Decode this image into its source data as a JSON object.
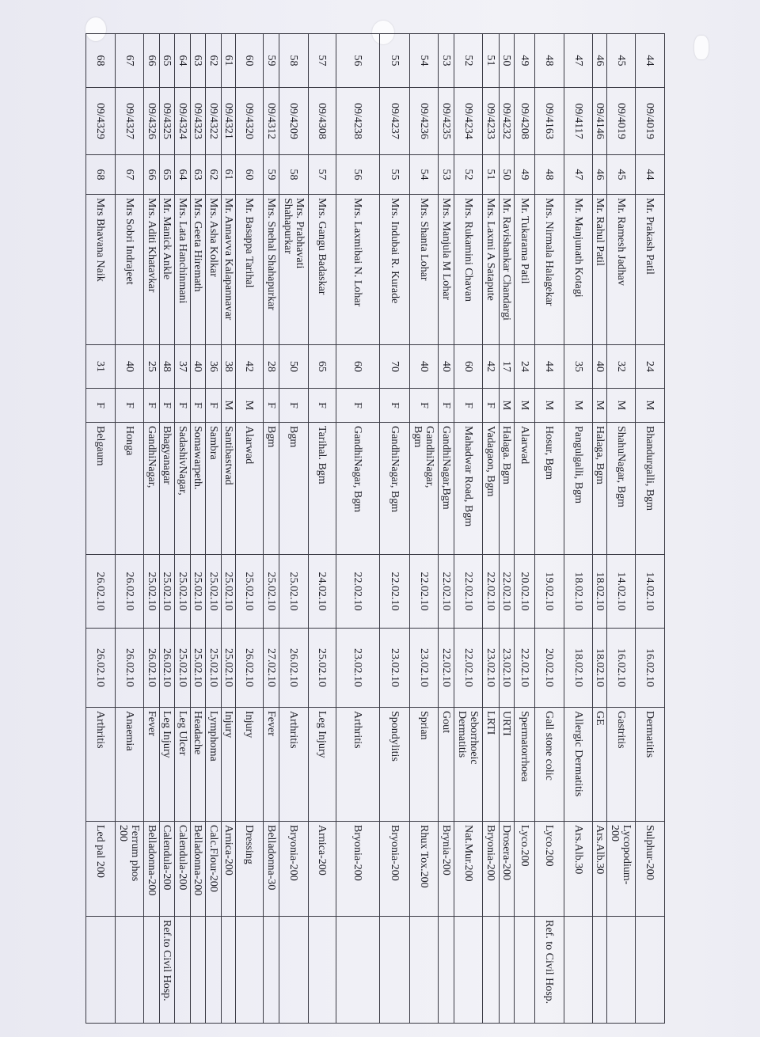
{
  "register": {
    "columns": [
      "sl_no",
      "reg_no",
      "op_no",
      "name",
      "age",
      "sex",
      "address",
      "date_from",
      "date_to",
      "diagnosis",
      "medicine",
      "remarks"
    ],
    "rows": [
      [
        "44",
        "09/4019",
        "44",
        "Mr. Prakash Patil",
        "24",
        "M",
        "Bhandurgalli,  Bgm",
        "14.02.10",
        "16.02.10",
        "Dermatitis",
        "Sulphur-200",
        ""
      ],
      [
        "45",
        "09/4019",
        "45",
        "Mr. Ramesh Jadhav",
        "32",
        "M",
        "ShahuNagar, Bgm",
        "14.02.10",
        "16.02.10",
        "Gastritis",
        "Lycopodium-\n200",
        ""
      ],
      [
        "46",
        "09/4146",
        "46",
        "Mr. Rahul Patil",
        "40",
        "M",
        "Halaga, Bgm",
        "18.02.10",
        "18.02.10",
        "GE",
        "Ars.Alb.30",
        ""
      ],
      [
        "47",
        "09/4117",
        "47",
        "Mr. Manjunath Kotagi",
        "35",
        "M",
        "Pangulgalli, Bgm",
        "18.02.10",
        "18.02.10",
        "Allergic Dermatitis",
        "Ars.Alb.30",
        ""
      ],
      [
        "48",
        "09/4163",
        "48",
        "Mrs. Nirmala Halagekar",
        "44",
        "M",
        "Hosur, Bgm",
        "19.02.10",
        "20.02.10",
        "Gall stone colic",
        "Lyco.200",
        "Ref. to Civil Hosp."
      ],
      [
        "49",
        "09/4208",
        "49",
        "Mr. Tukarama Patil",
        "24",
        "M",
        "Alarwad",
        "20.02.10",
        "22.02.10",
        "Spermatorrhoea",
        "Lyco.200",
        ""
      ],
      [
        "50",
        "09/4232",
        "50",
        "Mr. Ravishankar Chandargi",
        "17",
        "M",
        "Halaga. Bgm",
        "22.02.10",
        "23.02.10",
        "URTI",
        "Drosera-200",
        ""
      ],
      [
        "51",
        "09/4233",
        "51",
        "Mrs. Laxmi A Satapute",
        "42",
        "F",
        "Vadagaon, Bgm",
        "22.02.10",
        "23.02.10",
        "LRTI",
        "Bryonia-200",
        ""
      ],
      [
        "52",
        "09/4234",
        "52",
        "Mrs. Rukamini  Chavan",
        "60",
        "F",
        "Mahadwar Road, Bgm",
        "22.02.10",
        "22.02.10",
        "Seborrhoeic\nDermatitis",
        "Nat.Mur.200",
        ""
      ],
      [
        "53",
        "09/4235",
        "53",
        "Mrs. Manjula M Lohar",
        "40",
        "F",
        "GandhiNagar,Bgm",
        "22.02.10",
        "22.02.10",
        "Gout",
        "Brynia-200",
        ""
      ],
      [
        "54",
        "09/4236",
        "54",
        "Mrs. Shanta Lohar",
        "40",
        "F",
        "GandhiNagar,\nBgm",
        "22.02.10",
        "23.02.10",
        "Sprian",
        "Rhux Tox.200",
        ""
      ],
      [
        "55",
        "09/4237",
        "55",
        "Mrs. Indubai R. Kurade",
        "70",
        "F",
        "GandhiNagar, Bgm",
        "22.02.10",
        "23.02.10",
        "Spondylitis",
        "Bryonia-200",
        ""
      ],
      [
        "56",
        "09/4238",
        "56",
        "Mrs. Laxmibai N. Lohar",
        "60",
        "F",
        "GandhiNagar, Bgm",
        "22.02.10",
        "23.02.10",
        "Arthritis",
        "Bryonia-200",
        ""
      ],
      [
        "57",
        "09/4308",
        "57",
        "Mrs. Gangu Badaskar",
        "65",
        "F",
        "Tarihal. Bgm",
        "24.02.10",
        "25.02.10",
        "Leg Injury",
        "Arnica-200",
        ""
      ],
      [
        "58",
        "09/4209",
        "58",
        "Mrs. Prabhavati\nShahapurkar",
        "50",
        "F",
        "Bgm",
        "25.02.10",
        "26.02.10",
        "Arthritis",
        "Bryonia-200",
        ""
      ],
      [
        "59",
        "09/4312",
        "59",
        "Mrs. Snehal  Shahapurkar",
        "28",
        "F",
        "Bgm",
        "25.02.10",
        "27.02.10",
        "Fever",
        "Belladonna-30",
        ""
      ],
      [
        "60",
        "09/4320",
        "60",
        "Mr. Basappa Tarihal",
        "42",
        "M",
        "Alarwad",
        "25.02.10",
        "26.02.10",
        "Injury",
        "Dressing",
        ""
      ],
      [
        "61",
        "09/4321",
        "61",
        "Mr. Annavva  Kalapannavar",
        "38",
        "M",
        "Santibastwad",
        "25.02.10",
        "25.02.10",
        "Injury",
        "Arnica-200",
        ""
      ],
      [
        "62",
        "09/4322",
        "62",
        "Mrs. Asha Kolkar",
        "36",
        "F",
        "Sambra",
        "25.02.10",
        "25.02.10",
        "Lymphoma",
        "Calc.Flour-200",
        ""
      ],
      [
        "63",
        "09/4323",
        "63",
        "Mrs. Geeta Hiremath",
        "40",
        "F",
        "Somawarpeth.",
        "25.02.10",
        "25.02.10",
        "Headache",
        "Belladonna-200",
        ""
      ],
      [
        "64",
        "09/4324",
        "64",
        "Mrs. Lata Hanchinmani",
        "37",
        "F",
        "SadashivNagar,",
        "25.02.10",
        "25.02.10",
        "Leg Ulcer",
        "Calendula-200",
        ""
      ],
      [
        "65",
        "09/4325",
        "65",
        "Mr. Manick Ankle",
        "48",
        "F",
        "Bhagyanagar",
        "25.02.10",
        "26.02.10",
        "Leg Injury",
        "Calendula-200",
        "Ref.to Civil Hosp."
      ],
      [
        "66",
        "09/4326",
        "66",
        "Mrs. Aditi Khatavkar",
        "25",
        "F",
        "GandhiNagar,",
        "25.02.10",
        "26.02.10",
        "Fever",
        "Belladonna-200",
        ""
      ],
      [
        "67",
        "09/4327",
        "67",
        "Mrs Sobri Indrajeet",
        "40",
        "F",
        "Honga",
        "26.02.10",
        "26.02.10",
        "Anaemia",
        "Ferrum phos\n200",
        ""
      ],
      [
        "68",
        "09/4329",
        "68",
        "Mrs Bhavana Naik",
        "31",
        "F",
        "Belgaum",
        "26.02.10",
        "26.02.10",
        "Arthritis",
        "Led pal 200",
        ""
      ]
    ]
  }
}
